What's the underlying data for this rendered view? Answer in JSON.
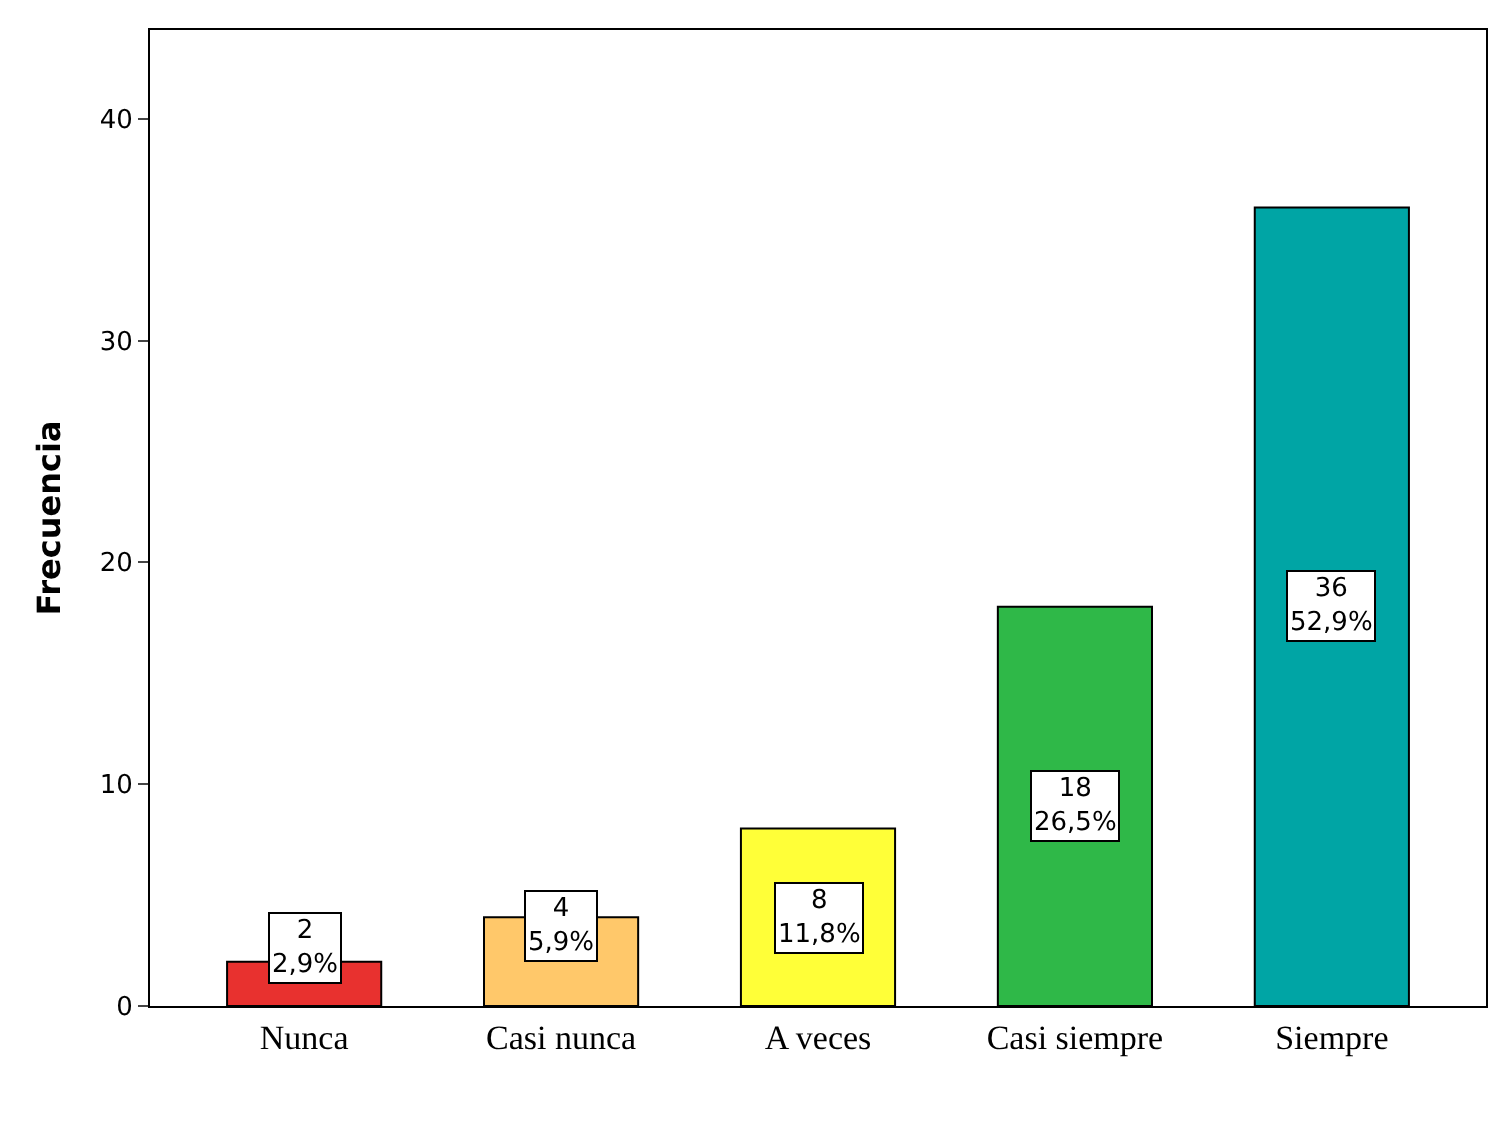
{
  "chart_data": {
    "type": "bar",
    "ylabel": "Frecuencia",
    "categories": [
      "Nunca",
      "Casi nunca",
      "A veces",
      "Casi siempre",
      "Siempre"
    ],
    "values": [
      2,
      4,
      8,
      18,
      36
    ],
    "colors": [
      "#e8312f",
      "#ffc86a",
      "#ffff38",
      "#2fb848",
      "#00a5a5"
    ],
    "value_labels": [
      "2\n2,9%",
      "4\n5,9%",
      "8\n11,8%",
      "18\n26,5%",
      "36\n52,9%"
    ],
    "ylim": [
      0,
      44
    ],
    "yticks": [
      0,
      10,
      20,
      30,
      40
    ],
    "legend": false
  }
}
